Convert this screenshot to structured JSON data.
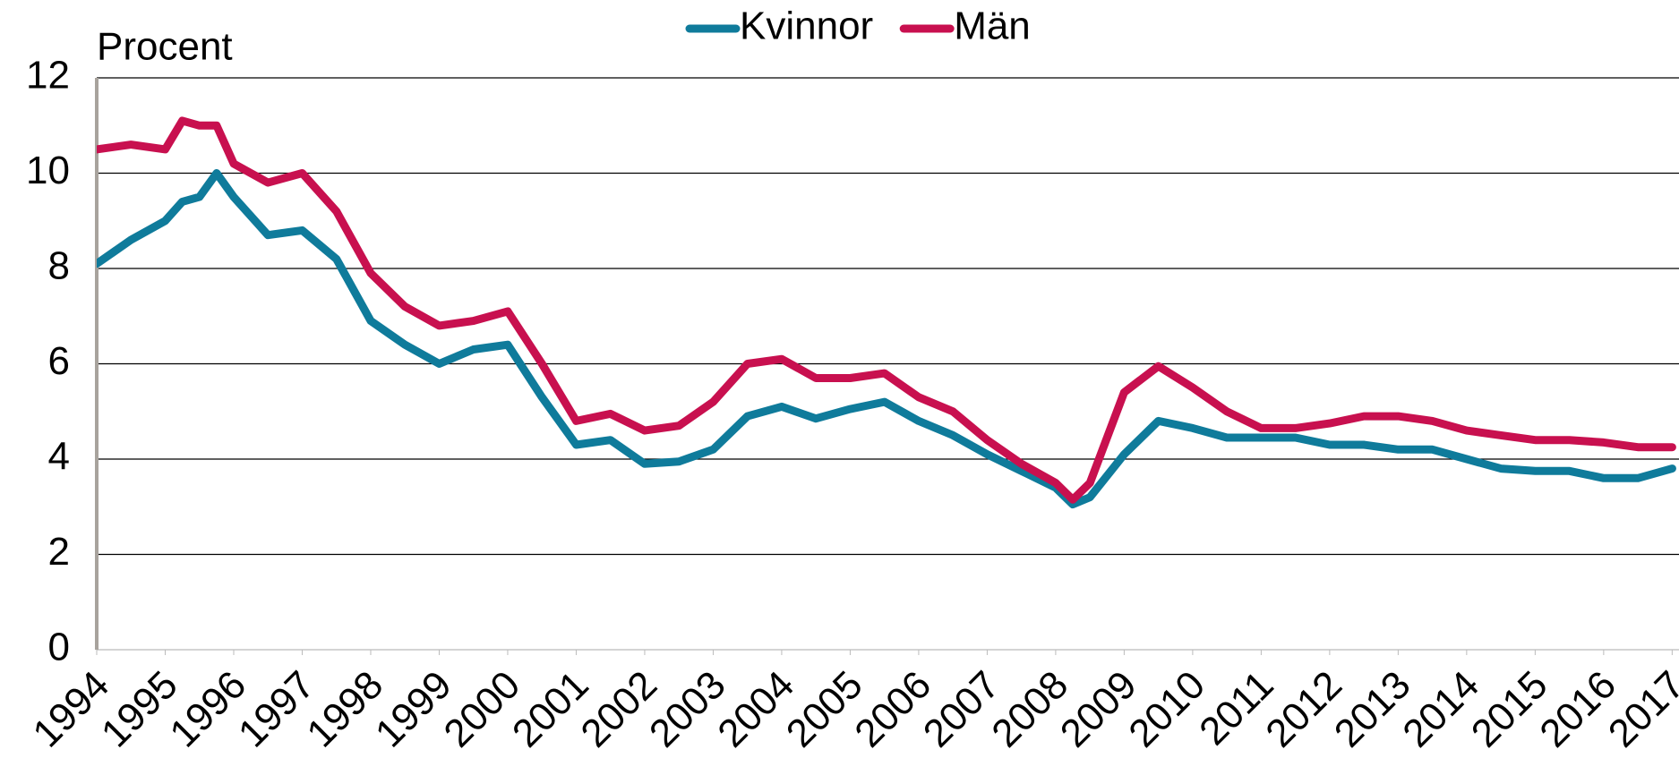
{
  "chart_data": {
    "type": "line",
    "ylabel": "Procent",
    "x": [
      1994,
      1994.5,
      1995,
      1995.25,
      1995.5,
      1995.75,
      1996,
      1996.5,
      1997,
      1997.5,
      1998,
      1998.5,
      1999,
      1999.5,
      2000,
      2000.5,
      2001,
      2001.5,
      2002,
      2002.5,
      2003,
      2003.5,
      2004,
      2004.5,
      2005,
      2005.5,
      2006,
      2006.5,
      2007,
      2007.5,
      2008,
      2008.25,
      2008.5,
      2009,
      2009.5,
      2010,
      2010.5,
      2011,
      2011.5,
      2012,
      2012.5,
      2013,
      2013.5,
      2014,
      2014.5,
      2015,
      2015.5,
      2016,
      2016.5,
      2017
    ],
    "series": [
      {
        "name": "Kvinnor",
        "color": "#0f7b9b",
        "values": [
          8.1,
          8.6,
          9.0,
          9.4,
          9.5,
          10.0,
          9.5,
          8.7,
          8.8,
          8.2,
          6.9,
          6.4,
          6.0,
          6.3,
          6.4,
          5.3,
          4.3,
          4.4,
          3.9,
          3.95,
          4.2,
          4.9,
          5.1,
          4.85,
          5.05,
          5.2,
          4.8,
          4.5,
          4.1,
          3.75,
          3.4,
          3.05,
          3.2,
          4.1,
          4.8,
          4.65,
          4.45,
          4.45,
          4.45,
          4.3,
          4.3,
          4.2,
          4.2,
          4.0,
          3.8,
          3.75,
          3.75,
          3.6,
          3.6,
          3.8
        ]
      },
      {
        "name": "Män",
        "color": "#c8104f",
        "values": [
          10.5,
          10.6,
          10.5,
          11.1,
          11.0,
          11.0,
          10.2,
          9.8,
          10.0,
          9.2,
          7.9,
          7.2,
          6.8,
          6.9,
          7.1,
          6.0,
          4.8,
          4.95,
          4.6,
          4.7,
          5.2,
          6.0,
          6.1,
          5.7,
          5.7,
          5.8,
          5.3,
          5.0,
          4.4,
          3.9,
          3.5,
          3.15,
          3.5,
          5.4,
          5.95,
          5.5,
          5.0,
          4.65,
          4.65,
          4.75,
          4.9,
          4.9,
          4.8,
          4.6,
          4.5,
          4.4,
          4.4,
          4.35,
          4.25,
          4.25
        ]
      }
    ],
    "xlim": [
      1994,
      2017.1
    ],
    "xticks": [
      1994,
      1995,
      1996,
      1997,
      1998,
      1999,
      2000,
      2001,
      2002,
      2003,
      2004,
      2005,
      2006,
      2007,
      2008,
      2009,
      2010,
      2011,
      2012,
      2013,
      2014,
      2015,
      2016,
      2017
    ],
    "ylim": [
      0,
      12
    ],
    "yticks": [
      0,
      2,
      4,
      6,
      8,
      10,
      12
    ],
    "grid": true,
    "legend": "top"
  }
}
